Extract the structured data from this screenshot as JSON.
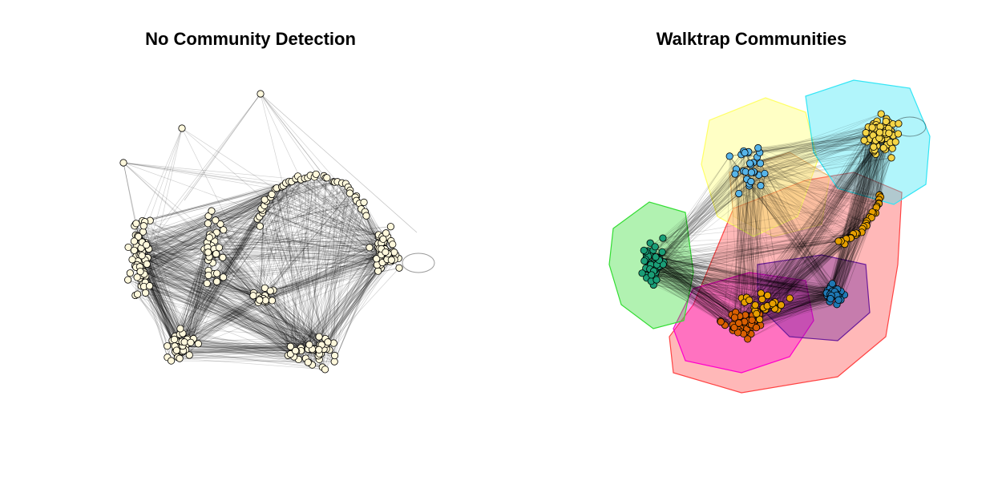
{
  "panels": {
    "left": {
      "title": "No Community Detection",
      "node_color": "#fff8dc"
    },
    "right": {
      "title": "Walktrap Communities",
      "communities": [
        {
          "id": "yellow",
          "fill": "#ffff66",
          "node": "#f5d547"
        },
        {
          "id": "cyan",
          "fill": "#33e5f5",
          "node": "#f5d547"
        },
        {
          "id": "skyblue",
          "fill": "#f5c97a",
          "node": "#56b4e9"
        },
        {
          "id": "green",
          "fill": "#33dd33",
          "node": "#1a9e77"
        },
        {
          "id": "red",
          "fill": "#ff4444",
          "node": "#e69f00"
        },
        {
          "id": "magenta",
          "fill": "#ff00cc",
          "node": "#d95f02"
        },
        {
          "id": "purple",
          "fill": "#6a1b9a",
          "node": "#1f78b4"
        }
      ]
    }
  }
}
